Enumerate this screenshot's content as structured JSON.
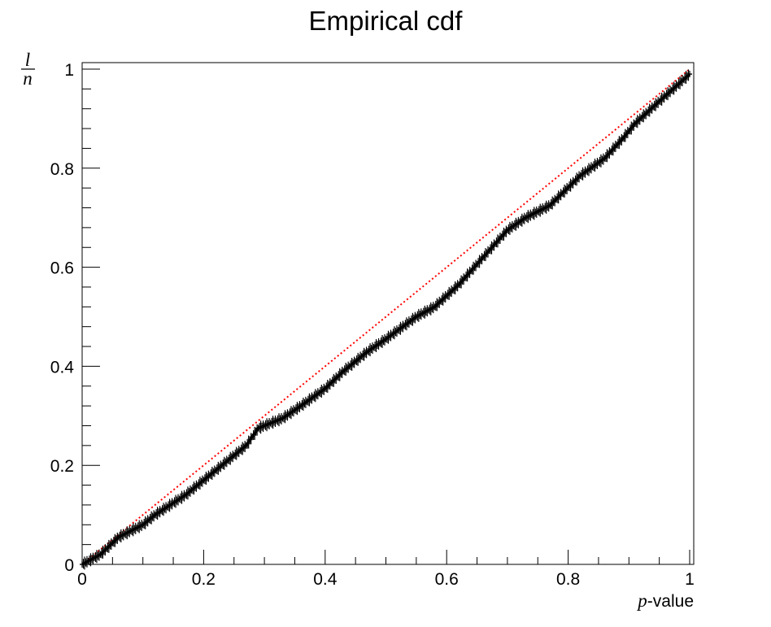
{
  "chart_data": {
    "type": "scatter",
    "title": "Empirical cdf",
    "xlabel": {
      "symbol": "p",
      "suffix": "-value"
    },
    "ylabel": {
      "numerator": "l",
      "denominator": "n"
    },
    "xlim": [
      0,
      1
    ],
    "ylim": [
      0,
      1
    ],
    "x_ticks": [
      {
        "value": 0,
        "label": "0"
      },
      {
        "value": 0.2,
        "label": "0.2"
      },
      {
        "value": 0.4,
        "label": "0.4"
      },
      {
        "value": 0.6,
        "label": "0.6"
      },
      {
        "value": 0.8,
        "label": "0.8"
      },
      {
        "value": 1,
        "label": "1"
      }
    ],
    "y_ticks": [
      {
        "value": 0,
        "label": "0"
      },
      {
        "value": 0.2,
        "label": "0.2"
      },
      {
        "value": 0.4,
        "label": "0.4"
      },
      {
        "value": 0.6,
        "label": "0.6"
      },
      {
        "value": 0.8,
        "label": "0.8"
      },
      {
        "value": 1,
        "label": "1"
      }
    ],
    "grid": false,
    "colors": {
      "data": "#000000",
      "reference": "#ff0000"
    },
    "series": [
      {
        "kind": "empirical-cdf",
        "x": [
          0,
          0.03,
          0.06,
          0.1,
          0.12,
          0.17,
          0.2,
          0.25,
          0.27,
          0.29,
          0.33,
          0.36,
          0.4,
          0.43,
          0.47,
          0.5,
          0.55,
          0.58,
          0.62,
          0.66,
          0.7,
          0.73,
          0.77,
          0.82,
          0.86,
          0.89,
          0.91,
          0.95,
          1.0
        ],
        "y": [
          0,
          0.02,
          0.055,
          0.08,
          0.1,
          0.14,
          0.17,
          0.22,
          0.24,
          0.275,
          0.295,
          0.32,
          0.355,
          0.39,
          0.43,
          0.455,
          0.5,
          0.52,
          0.565,
          0.62,
          0.675,
          0.7,
          0.725,
          0.785,
          0.82,
          0.86,
          0.89,
          0.935,
          0.99
        ]
      },
      {
        "kind": "reference",
        "x": [
          0,
          1
        ],
        "y": [
          0,
          1
        ]
      }
    ]
  }
}
